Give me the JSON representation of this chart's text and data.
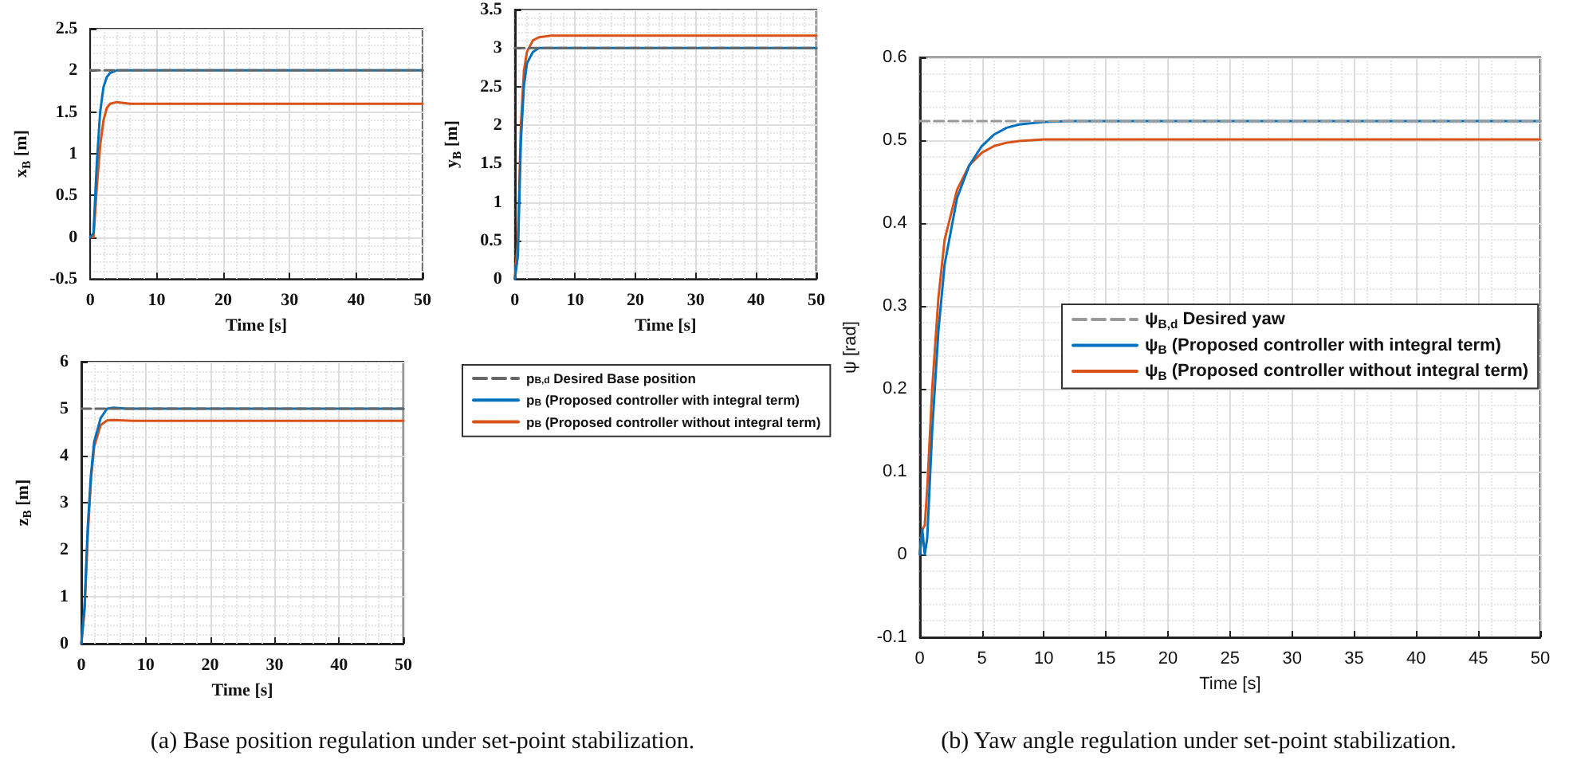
{
  "chart_data": [
    {
      "type": "line",
      "xlabel": "Time [s]",
      "ylabel": "x$_{B}$ [m]",
      "xlim": [
        0,
        50
      ],
      "xticks": [
        0,
        10,
        20,
        30,
        40,
        50
      ],
      "ylim": [
        -0.5,
        2.5
      ],
      "yticks": [
        -0.5,
        0,
        0.5,
        1,
        1.5,
        2,
        2.5
      ],
      "grid": true,
      "legend": false,
      "series": [
        {
          "color": "#666666",
          "line_style": "dashed",
          "x": [
            0,
            50
          ],
          "values": [
            2,
            2
          ]
        },
        {
          "color": "#0072bd",
          "line_style": "solid",
          "x": [
            0,
            0.5,
            1,
            1.5,
            2,
            2.5,
            3,
            4,
            5,
            6,
            8,
            10,
            20,
            30,
            40,
            50
          ],
          "values": [
            0,
            0.05,
            0.9,
            1.5,
            1.8,
            1.92,
            1.97,
            2,
            2,
            2,
            2,
            2,
            2,
            2,
            2,
            2
          ]
        },
        {
          "color": "#d95319",
          "line_style": "solid",
          "x": [
            0,
            0.5,
            1,
            1.5,
            2,
            2.5,
            3,
            4,
            5,
            6,
            8,
            10,
            20,
            30,
            40,
            50
          ],
          "values": [
            0,
            0,
            0.6,
            1.1,
            1.4,
            1.55,
            1.6,
            1.62,
            1.61,
            1.6,
            1.6,
            1.6,
            1.6,
            1.6,
            1.6,
            1.6
          ]
        }
      ]
    },
    {
      "type": "line",
      "xlabel": "Time [s]",
      "ylabel": "y$_{B}$ [m]",
      "xlim": [
        0,
        50
      ],
      "xticks": [
        0,
        10,
        20,
        30,
        40,
        50
      ],
      "ylim": [
        0,
        3.5
      ],
      "yticks": [
        0,
        0.5,
        1,
        1.5,
        2,
        2.5,
        3,
        3.5
      ],
      "grid": true,
      "legend": false,
      "series": [
        {
          "color": "#666666",
          "line_style": "dashed",
          "x": [
            0,
            50
          ],
          "values": [
            3,
            3
          ]
        },
        {
          "color": "#0072bd",
          "line_style": "solid",
          "x": [
            0,
            0.5,
            1,
            1.5,
            2,
            3,
            4,
            5,
            6,
            8,
            10,
            20,
            30,
            40,
            50
          ],
          "values": [
            0,
            0.3,
            1.8,
            2.5,
            2.8,
            2.95,
            3,
            3,
            3,
            3,
            3,
            3,
            3,
            3,
            3
          ]
        },
        {
          "color": "#d95319",
          "line_style": "solid",
          "x": [
            0,
            0.5,
            1,
            1.5,
            2,
            3,
            4,
            5,
            6,
            8,
            10,
            20,
            30,
            40,
            50
          ],
          "values": [
            0,
            0.5,
            2,
            2.7,
            2.95,
            3.1,
            3.14,
            3.15,
            3.16,
            3.16,
            3.16,
            3.16,
            3.16,
            3.16,
            3.16
          ]
        }
      ]
    },
    {
      "type": "line",
      "xlabel": "Time [s]",
      "ylabel": "z$_{B}$ [m]",
      "xlim": [
        0,
        50
      ],
      "xticks": [
        0,
        10,
        20,
        30,
        40,
        50
      ],
      "ylim": [
        0,
        6
      ],
      "yticks": [
        0,
        1,
        2,
        3,
        4,
        5,
        6
      ],
      "grid": true,
      "legend": "right",
      "annotations": [
        "(a) Base position regulation under set-point stabilization."
      ],
      "series": [
        {
          "name": "p$_{B,d}$ Desired Base position",
          "color": "#666666",
          "line_style": "dashed",
          "x": [
            0,
            50
          ],
          "values": [
            5,
            5
          ]
        },
        {
          "name": "p$_{B}$ (Proposed controller with integral term)",
          "color": "#0072bd",
          "line_style": "solid",
          "x": [
            0,
            0.5,
            1,
            1.5,
            2,
            3,
            4,
            5,
            7,
            10,
            20,
            30,
            40,
            50
          ],
          "values": [
            0,
            0.8,
            2.5,
            3.6,
            4.3,
            4.8,
            5,
            5.02,
            5,
            5,
            5,
            5,
            5,
            5
          ]
        },
        {
          "name": "p$_{B}$ (Proposed controller without integral term)",
          "color": "#d95319",
          "line_style": "solid",
          "x": [
            0,
            0.5,
            1,
            1.5,
            2,
            3,
            4,
            5,
            8,
            10,
            20,
            30,
            40,
            50
          ],
          "values": [
            0,
            0.7,
            2.3,
            3.5,
            4.2,
            4.65,
            4.75,
            4.76,
            4.74,
            4.74,
            4.74,
            4.74,
            4.74,
            4.74
          ]
        }
      ]
    },
    {
      "type": "line",
      "xlabel": "Time [s]",
      "ylabel": "ψ [rad]",
      "xlim": [
        0,
        50
      ],
      "xticks": [
        0,
        5,
        10,
        15,
        20,
        25,
        30,
        35,
        40,
        45,
        50
      ],
      "ylim": [
        -0.1,
        0.6
      ],
      "yticks": [
        -0.1,
        0,
        0.1,
        0.2,
        0.3,
        0.4,
        0.5,
        0.6
      ],
      "grid": true,
      "legend": "center",
      "annotations": [
        "(b) Yaw angle regulation under set-point stabilization."
      ],
      "series": [
        {
          "name": "ψ$_{B,d}$ Desired yaw",
          "color": "#999999",
          "line_style": "dashed",
          "x": [
            0,
            50
          ],
          "values": [
            0.523,
            0.523
          ]
        },
        {
          "name": "ψ$_{B}$ (Proposed controller with integral term)",
          "color": "#0072bd",
          "line_style": "solid",
          "x": [
            0,
            0.2,
            0.4,
            0.6,
            1,
            1.5,
            2,
            3,
            4,
            5,
            6,
            7,
            8,
            10,
            12,
            20,
            30,
            40,
            50
          ],
          "values": [
            0,
            0.03,
            0,
            0.02,
            0.15,
            0.27,
            0.35,
            0.43,
            0.47,
            0.493,
            0.507,
            0.515,
            0.519,
            0.522,
            0.523,
            0.523,
            0.523,
            0.523,
            0.523
          ]
        },
        {
          "name": "ψ$_{B}$ (Proposed controller without integral term)",
          "color": "#d95319",
          "line_style": "solid",
          "x": [
            0,
            0.2,
            0.4,
            0.6,
            1,
            1.5,
            2,
            3,
            4,
            5,
            6,
            7,
            8,
            10,
            20,
            30,
            40,
            50
          ],
          "values": [
            0,
            0.03,
            0.035,
            0.08,
            0.2,
            0.31,
            0.38,
            0.44,
            0.47,
            0.485,
            0.493,
            0.497,
            0.499,
            0.501,
            0.501,
            0.501,
            0.501,
            0.501
          ]
        }
      ]
    }
  ]
}
